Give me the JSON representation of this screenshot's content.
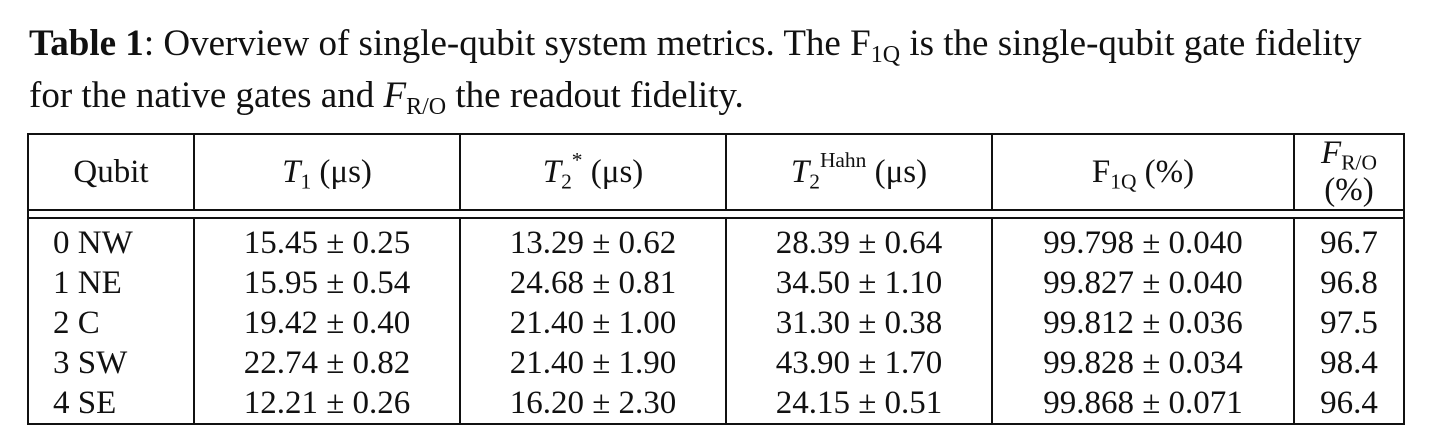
{
  "caption": {
    "label": "Table 1",
    "text_1": ": Overview of single-qubit system metrics. The F",
    "f1q_sub": "1Q",
    "text_2": " is the single-qubit gate fidelity for the native gates and ",
    "fro_symbol": "F",
    "fro_sub": "R/O",
    "text_3": " the readout fidelity."
  },
  "table": {
    "headers": [
      {
        "main": "Qubit",
        "sub": "",
        "sup": "",
        "unit": ""
      },
      {
        "main": "T",
        "sub": "1",
        "sup": "",
        "unit": " (μs)"
      },
      {
        "main": "T",
        "sub": "2",
        "sup": "*",
        "unit": " (μs)"
      },
      {
        "main": "T",
        "sub": "2",
        "sup": "Hahn",
        "unit": " (μs)"
      },
      {
        "main": "F",
        "sub": "1Q",
        "sup": "",
        "unit": " (%)"
      },
      {
        "main": "F",
        "sub": "R/O",
        "sup": "",
        "unit": " (%)"
      }
    ],
    "rows": [
      [
        "0 NW",
        "15.45 ± 0.25",
        "13.29 ± 0.62",
        "28.39 ± 0.64",
        "99.798 ± 0.040",
        "96.7"
      ],
      [
        "1 NE",
        "15.95 ± 0.54",
        "24.68 ± 0.81",
        "34.50 ± 1.10",
        "99.827 ± 0.040",
        "96.8"
      ],
      [
        "2 C",
        "19.42 ± 0.40",
        "21.40 ± 1.00",
        "31.30 ± 0.38",
        "99.812 ± 0.036",
        "97.5"
      ],
      [
        "3 SW",
        "22.74 ± 0.82",
        "21.40 ± 1.90",
        "43.90 ± 1.70",
        "99.828 ± 0.034",
        "98.4"
      ],
      [
        "4 SE",
        "12.21 ± 0.26",
        "16.20 ± 2.30",
        "24.15 ± 0.51",
        "99.868 ± 0.071",
        "96.4"
      ]
    ]
  }
}
